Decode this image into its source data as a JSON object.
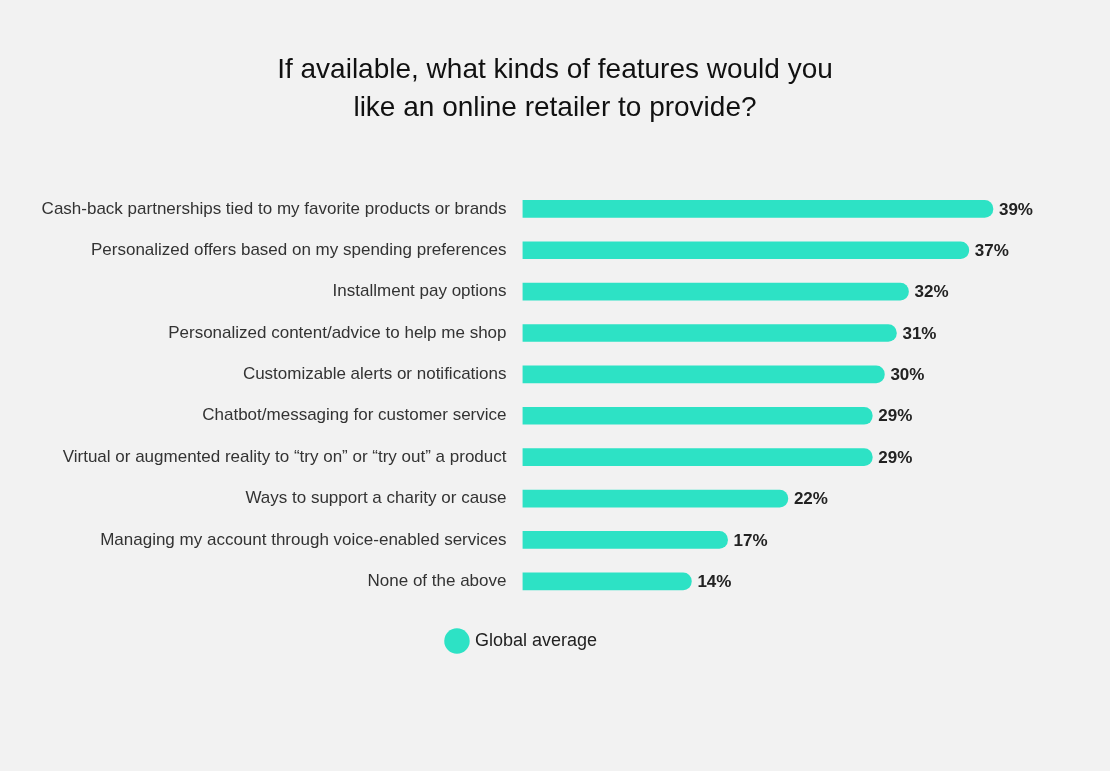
{
  "chart_data": {
    "type": "bar",
    "orientation": "horizontal",
    "title": "If available, what kinds of features would you like an online retailer to provide?",
    "categories": [
      "Cash-back partnerships tied to my favorite products or brands",
      "Personalized offers based on my spending preferences",
      "Installment pay options",
      "Personalized content/advice to help me shop",
      "Customizable alerts or notifications",
      "Chatbot/messaging for customer service",
      "Virtual or augmented reality to “try on” or “try out” a product",
      "Ways to support a charity or cause",
      "Managing my account through voice-enabled services",
      "None of the above"
    ],
    "series": [
      {
        "name": "Global average",
        "color": "#2de2c5",
        "values": [
          39,
          37,
          32,
          31,
          30,
          29,
          29,
          22,
          17,
          14
        ],
        "value_labels": [
          "39%",
          "37%",
          "32%",
          "31%",
          "30%",
          "29%",
          "29%",
          "22%",
          "17%",
          "14%"
        ]
      }
    ],
    "legend": "bottom",
    "grid": false,
    "tick_labels": "y"
  }
}
